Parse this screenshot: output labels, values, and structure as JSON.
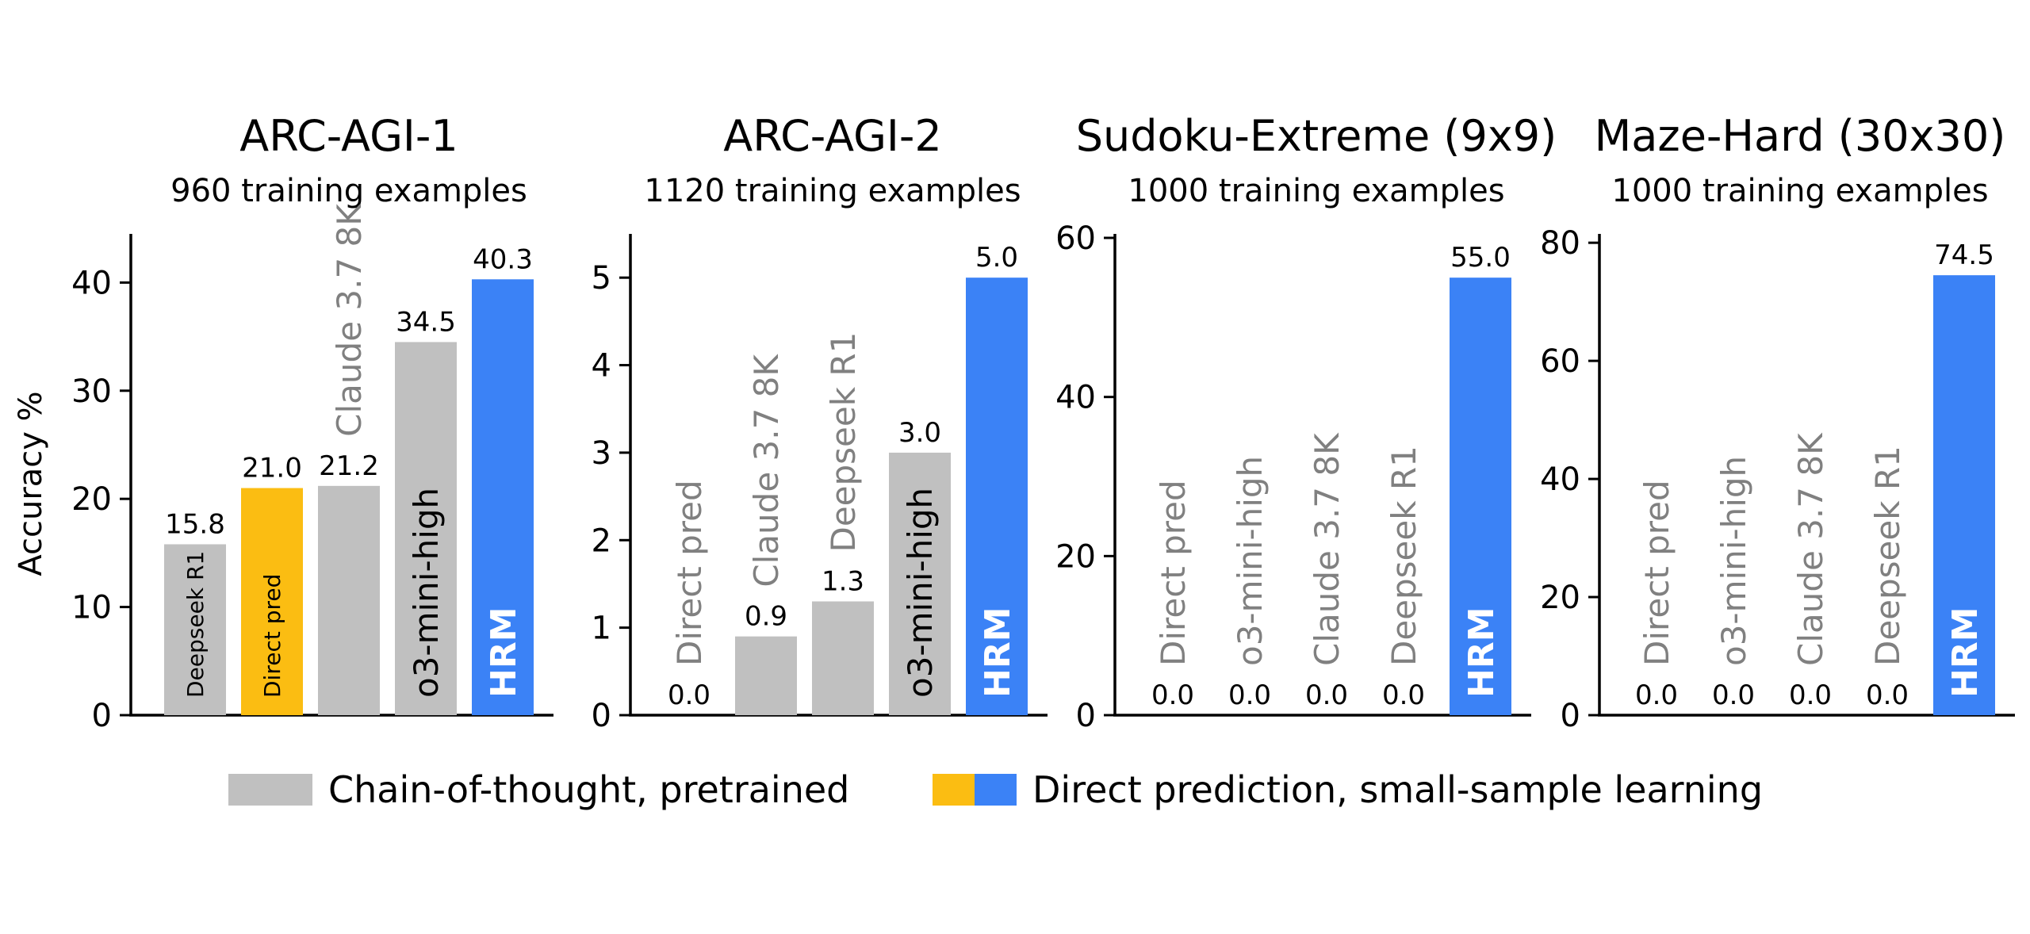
{
  "colors": {
    "cot": "#c0c0c0",
    "direct_orange": "#fbbd12",
    "hrm_blue": "#3b82f6",
    "faded_text": "#808080",
    "axis": "#000000"
  },
  "ylabel": "Accuracy %",
  "legend": {
    "cot_label": "Chain-of-thought, pretrained",
    "direct_label": "Direct prediction, small-sample learning"
  },
  "chart_data": [
    {
      "type": "bar",
      "title": "ARC-AGI-1",
      "subtitle": "960 training examples",
      "ylabel": "Accuracy %",
      "ylim": [
        0,
        44.5
      ],
      "yticks": [
        0,
        10,
        20,
        30,
        40
      ],
      "categories": [
        "Deepseek R1",
        "Direct pred",
        "Claude 3.7 8K",
        "o3-mini-high",
        "HRM"
      ],
      "values": [
        15.8,
        21.0,
        21.2,
        34.5,
        40.3
      ],
      "value_labels": [
        "15.8",
        "21.0",
        "21.2",
        "34.5",
        "40.3"
      ],
      "bar_groups": [
        "cot",
        "direct",
        "cot",
        "cot",
        "hrm"
      ]
    },
    {
      "type": "bar",
      "title": "ARC-AGI-2",
      "subtitle": "1120 training examples",
      "ylabel": "",
      "ylim": [
        0,
        5.5
      ],
      "yticks": [
        0,
        1,
        2,
        3,
        4,
        5
      ],
      "categories": [
        "Direct pred",
        "Claude 3.7 8K",
        "Deepseek R1",
        "o3-mini-high",
        "HRM"
      ],
      "values": [
        0.0,
        0.9,
        1.3,
        3.0,
        5.0
      ],
      "value_labels": [
        "0.0",
        "0.9",
        "1.3",
        "3.0",
        "5.0"
      ],
      "bar_groups": [
        "direct",
        "cot",
        "cot",
        "cot",
        "hrm"
      ]
    },
    {
      "type": "bar",
      "title": "Sudoku-Extreme (9x9)",
      "subtitle": "1000 training examples",
      "ylabel": "",
      "ylim": [
        0,
        60.5
      ],
      "yticks": [
        0,
        20,
        40,
        60
      ],
      "categories": [
        "Direct pred",
        "o3-mini-high",
        "Claude 3.7 8K",
        "Deepseek R1",
        "HRM"
      ],
      "values": [
        0.0,
        0.0,
        0.0,
        0.0,
        55.0
      ],
      "value_labels": [
        "0.0",
        "0.0",
        "0.0",
        "0.0",
        "55.0"
      ],
      "bar_groups": [
        "direct",
        "cot",
        "cot",
        "cot",
        "hrm"
      ]
    },
    {
      "type": "bar",
      "title": "Maze-Hard (30x30)",
      "subtitle": "1000 training examples",
      "ylabel": "",
      "ylim": [
        0,
        81.5
      ],
      "yticks": [
        0,
        20,
        40,
        60,
        80
      ],
      "categories": [
        "Direct pred",
        "o3-mini-high",
        "Claude 3.7 8K",
        "Deepseek R1",
        "HRM"
      ],
      "values": [
        0.0,
        0.0,
        0.0,
        0.0,
        74.5
      ],
      "value_labels": [
        "0.0",
        "0.0",
        "0.0",
        "0.0",
        "74.5"
      ],
      "bar_groups": [
        "direct",
        "cot",
        "cot",
        "cot",
        "hrm"
      ]
    }
  ]
}
